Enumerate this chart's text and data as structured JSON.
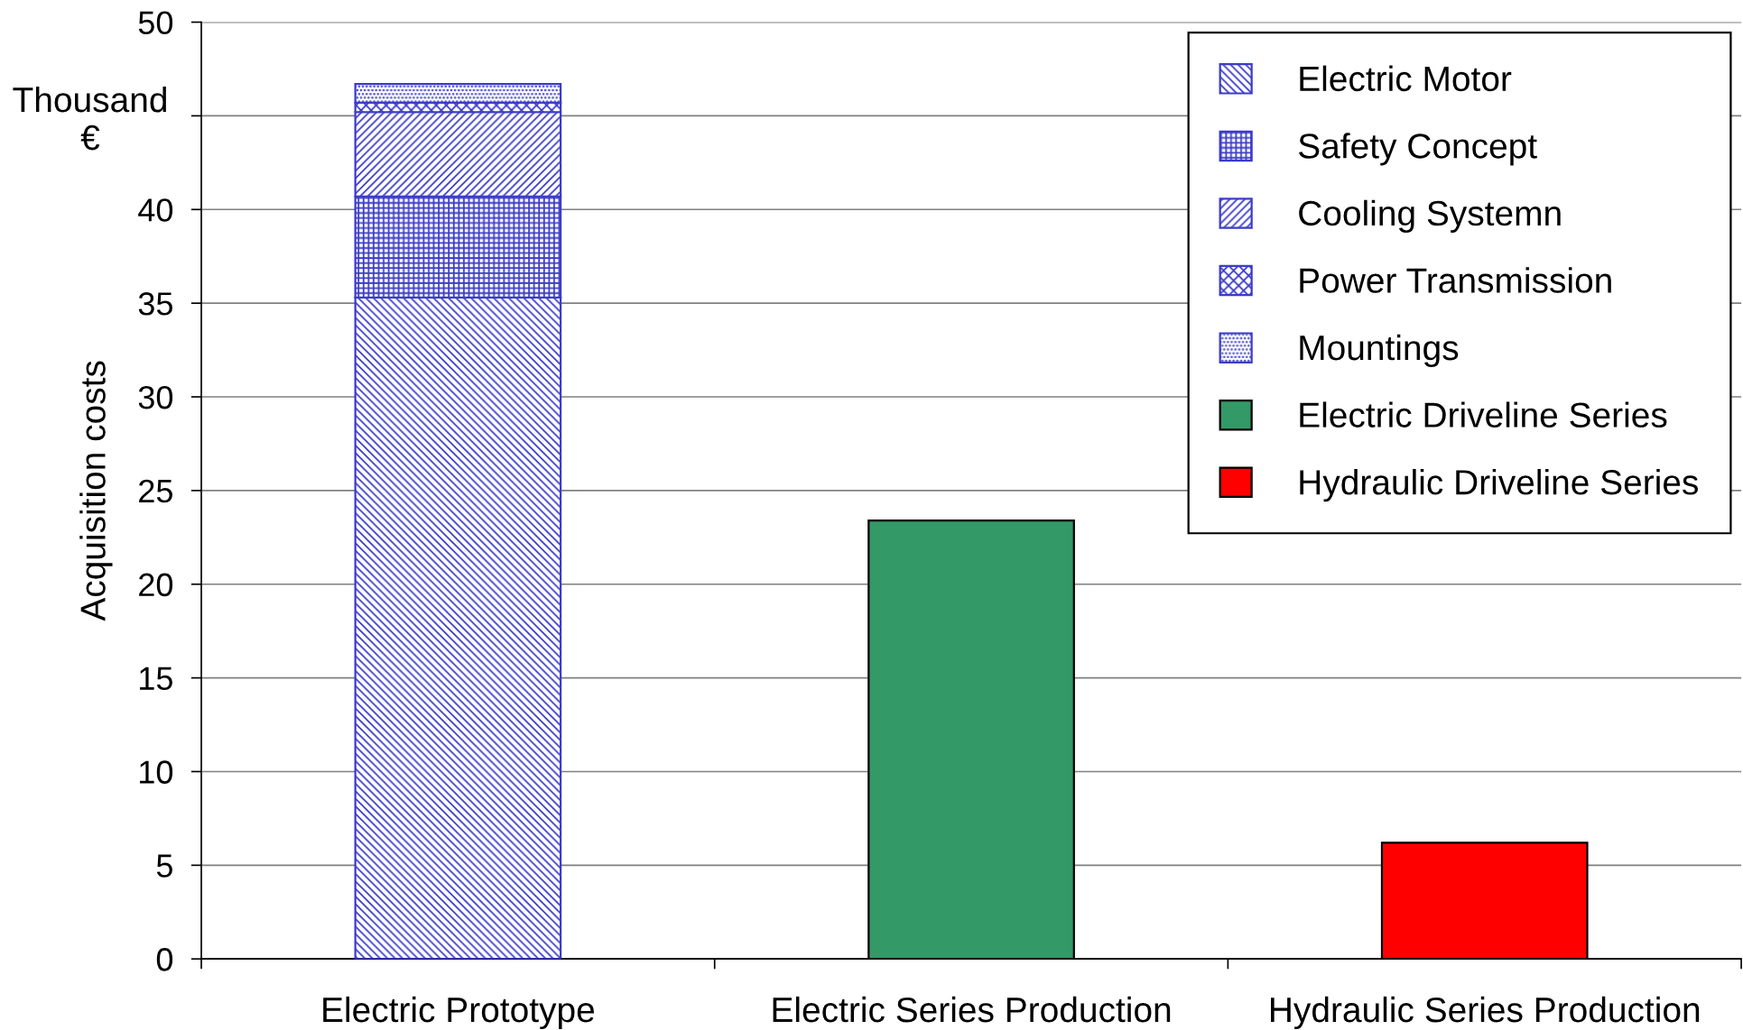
{
  "chart_data": {
    "type": "bar",
    "ylabel": "Acquisition costs",
    "annotations": [
      "Thousand\n€"
    ],
    "categories": [
      "Electric Prototype",
      "Electric Series Production",
      "Hydraulic Series Production"
    ],
    "stacked": true,
    "series": [
      {
        "name": "Electric Motor",
        "color": "#3c3cc8",
        "values": [
          35.3,
          null,
          null
        ]
      },
      {
        "name": "Safety Concept",
        "color": "#3c3cc8",
        "values": [
          5.4,
          null,
          null
        ]
      },
      {
        "name": "Cooling Systemn",
        "color": "#3c3cc8",
        "values": [
          4.5,
          null,
          null
        ]
      },
      {
        "name": "Power Transmission",
        "color": "#3c3cc8",
        "values": [
          0.5,
          null,
          null
        ]
      },
      {
        "name": "Mountings",
        "color": "#3c3cc8",
        "values": [
          1.0,
          null,
          null
        ]
      },
      {
        "name": "Electric Driveline Series",
        "color": "#339966",
        "values": [
          null,
          23.4,
          null
        ]
      },
      {
        "name": "Hydraulic Driveline Series",
        "color": "#ff0000",
        "values": [
          null,
          null,
          6.2
        ]
      }
    ],
    "ylim": [
      0,
      50
    ],
    "yticks": [
      0,
      5,
      10,
      15,
      20,
      25,
      30,
      35,
      40,
      {
        "value": 45,
        "label": null
      },
      50
    ],
    "grid": "y",
    "legend": "top right"
  }
}
